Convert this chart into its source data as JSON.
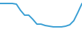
{
  "x": [
    0,
    1,
    2,
    3,
    4,
    5,
    6,
    7,
    8,
    9,
    10,
    11,
    12,
    13,
    14,
    15,
    16,
    17,
    18,
    19,
    20
  ],
  "y": [
    5,
    5,
    5,
    5,
    6,
    15,
    22,
    22,
    28,
    35,
    35,
    37,
    38,
    39,
    39,
    39,
    38,
    36,
    30,
    18,
    5
  ],
  "line_color": "#3a9fd4",
  "linewidth": 1.5,
  "background_color": "#ffffff",
  "ylim": [
    0,
    45
  ],
  "xlim": [
    0,
    20
  ]
}
